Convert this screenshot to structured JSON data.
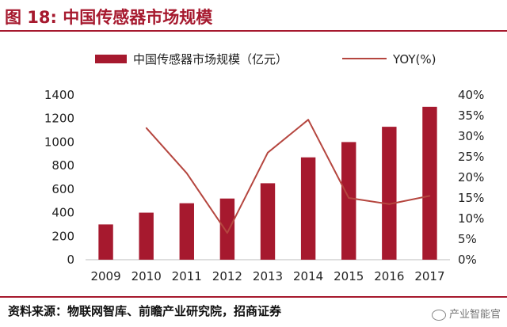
{
  "header": {
    "title": "图 18:  中国传感器市场规模"
  },
  "source": {
    "text": "资料来源：物联网智库、前瞻产业研究院，招商证券",
    "watermark": "产业智能官",
    "watermark_icon": "wechat-icon"
  },
  "colors": {
    "bar": "#a6192e",
    "line": "#b5463f",
    "accent": "#a6192e"
  },
  "chart_data": {
    "type": "bar",
    "categories": [
      "2009",
      "2010",
      "2011",
      "2012",
      "2013",
      "2014",
      "2015",
      "2016",
      "2017"
    ],
    "series": [
      {
        "name": "中国传感器市场规模（亿元）",
        "type": "bar",
        "axis": "left",
        "values": [
          300,
          400,
          480,
          520,
          650,
          870,
          1000,
          1130,
          1300
        ]
      },
      {
        "name": "YOY(%)",
        "type": "line",
        "axis": "right",
        "values": [
          null,
          32,
          21,
          6.5,
          26,
          34,
          15,
          13.5,
          15.5
        ]
      }
    ],
    "y_left": {
      "min": 0,
      "max": 1400,
      "ticks": [
        "0",
        "200",
        "400",
        "600",
        "800",
        "1000",
        "1200",
        "1400"
      ]
    },
    "y_right": {
      "min": 0,
      "max": 40,
      "ticks": [
        "0%",
        "5%",
        "10%",
        "15%",
        "20%",
        "25%",
        "30%",
        "35%",
        "40%"
      ]
    },
    "grid": false,
    "legend_position": "top"
  }
}
